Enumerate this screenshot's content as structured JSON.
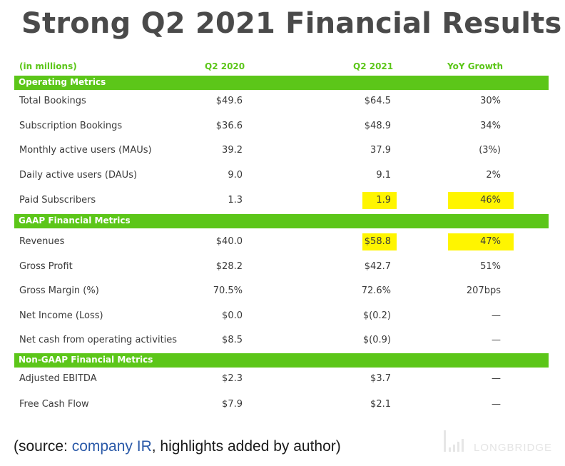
{
  "title": "Strong Q2 2021 Financial Results",
  "header": {
    "units": "(in millions)",
    "col1": "Q2 2020",
    "col2": "Q2 2021",
    "col3": "YoY Growth"
  },
  "sections": {
    "operating": "Operating Metrics",
    "gaap": "GAAP Financial Metrics",
    "nongaap": "Non-GAAP Financial Metrics"
  },
  "rows": [
    {
      "label": "Total Bookings",
      "q2_2020": "$49.6",
      "q2_2021": "$64.5",
      "yoy": "30%"
    },
    {
      "label": "Subscription Bookings",
      "q2_2020": "$36.6",
      "q2_2021": "$48.9",
      "yoy": "34%"
    },
    {
      "label": "Monthly active users (MAUs)",
      "q2_2020": "39.2",
      "q2_2021": "37.9",
      "yoy": "(3%)"
    },
    {
      "label": "Daily active users (DAUs)",
      "q2_2020": "9.0",
      "q2_2021": "9.1",
      "yoy": "2%"
    },
    {
      "label": "Paid Subscribers",
      "q2_2020": "1.3",
      "q2_2021": "1.9",
      "yoy": "46%"
    },
    {
      "label": "Revenues",
      "q2_2020": "$40.0",
      "q2_2021": "$58.8",
      "yoy": "47%"
    },
    {
      "label": "Gross Profit",
      "q2_2020": "$28.2",
      "q2_2021": "$42.7",
      "yoy": "51%"
    },
    {
      "label": "Gross Margin (%)",
      "q2_2020": "70.5%",
      "q2_2021": "72.6%",
      "yoy": "207bps"
    },
    {
      "label": "Net Income (Loss)",
      "q2_2020": "$0.0",
      "q2_2021": "$(0.2)",
      "yoy": "—"
    },
    {
      "label": "Net cash from operating activities",
      "q2_2020": "$8.5",
      "q2_2021": "$(0.9)",
      "yoy": "—"
    },
    {
      "label": "Adjusted EBITDA",
      "q2_2020": "$2.3",
      "q2_2021": "$3.7",
      "yoy": "—"
    },
    {
      "label": "Free Cash Flow",
      "q2_2020": "$7.9",
      "q2_2021": "$2.1",
      "yoy": "—"
    }
  ],
  "highlight_color": "#fff500",
  "accent_color": "#5cc619",
  "source": {
    "prefix": "(source: ",
    "link": "company IR",
    "suffix": ", highlights added by author)"
  },
  "watermark": "LONGBRIDGE"
}
